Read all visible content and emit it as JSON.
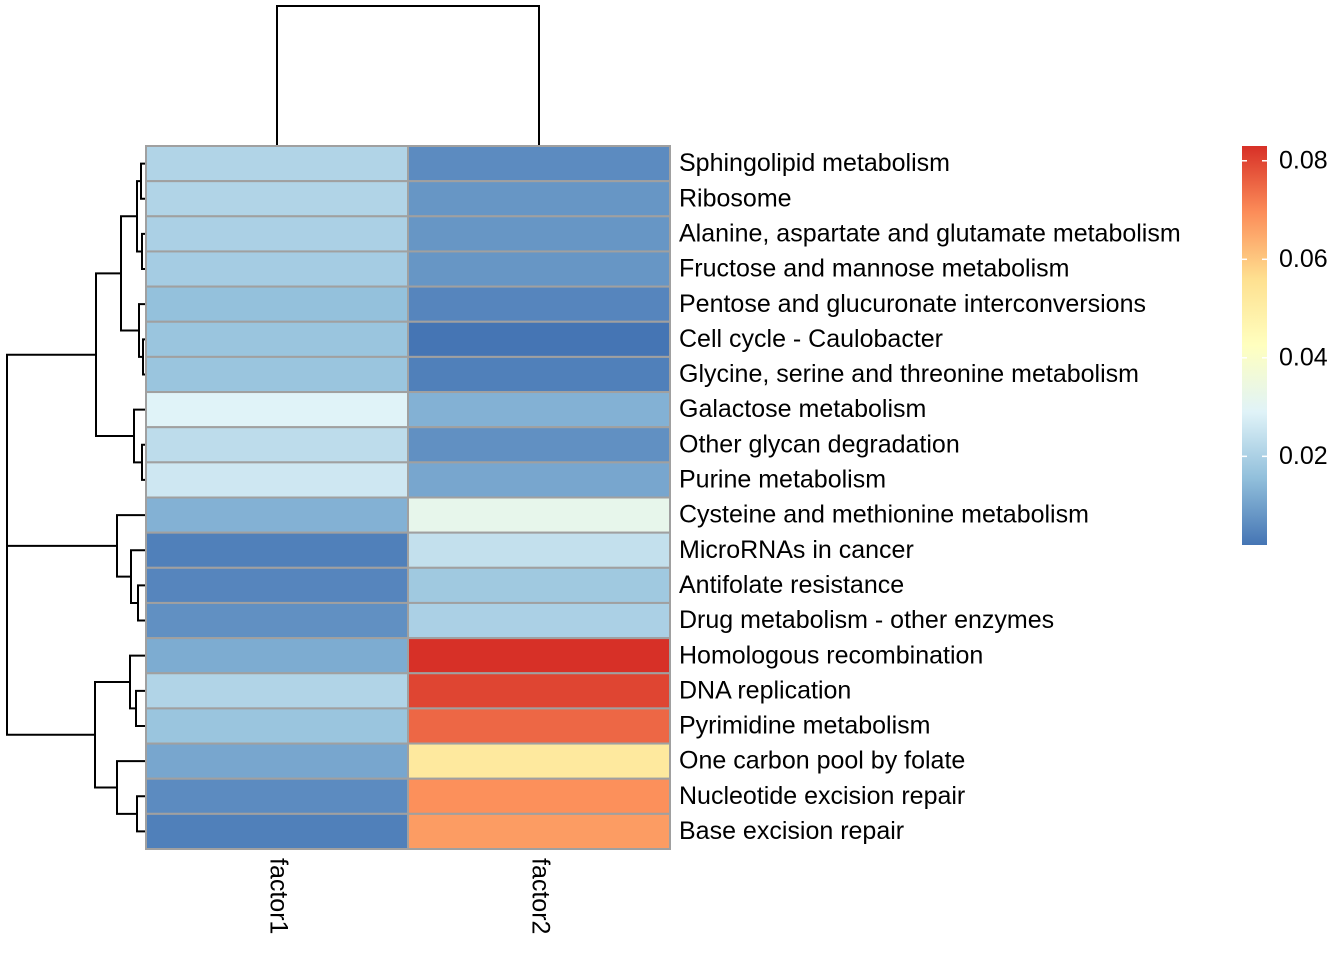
{
  "chart_data": {
    "type": "heatmap",
    "title": "",
    "xlabel": "",
    "ylabel": "",
    "columns": [
      "factor1",
      "factor2"
    ],
    "rows": [
      "Sphingolipid metabolism",
      "Ribosome",
      "Alanine, aspartate and glutamate metabolism",
      "Fructose and mannose metabolism",
      "Pentose and glucuronate interconversions",
      "Cell cycle - Caulobacter",
      "Glycine, serine and threonine metabolism",
      "Galactose metabolism",
      "Other glycan degradation",
      "Purine metabolism",
      "Cysteine and methionine metabolism",
      "MicroRNAs in cancer",
      "Antifolate resistance",
      "Drug metabolism - other enzymes",
      "Homologous recombination",
      "DNA replication",
      "Pyrimidine metabolism",
      "One carbon pool by folate",
      "Nucleotide excision repair",
      "Base excision repair"
    ],
    "values": [
      [
        0.021,
        0.006
      ],
      [
        0.021,
        0.008
      ],
      [
        0.02,
        0.008
      ],
      [
        0.019,
        0.008
      ],
      [
        0.016,
        0.005
      ],
      [
        0.017,
        0.002
      ],
      [
        0.017,
        0.004
      ],
      [
        0.029,
        0.013
      ],
      [
        0.023,
        0.007
      ],
      [
        0.026,
        0.011
      ],
      [
        0.013,
        0.032
      ],
      [
        0.004,
        0.024
      ],
      [
        0.005,
        0.018
      ],
      [
        0.007,
        0.02
      ],
      [
        0.012,
        0.083
      ],
      [
        0.021,
        0.08
      ],
      [
        0.017,
        0.075
      ],
      [
        0.011,
        0.052
      ],
      [
        0.006,
        0.069
      ],
      [
        0.004,
        0.067
      ]
    ],
    "color_scale": {
      "min": 0.002,
      "max": 0.083,
      "stops": [
        "#4575B4",
        "#91BFDB",
        "#E0F3F8",
        "#FFFFBF",
        "#FEE090",
        "#FC8D59",
        "#D73027"
      ],
      "ticks": [
        0.02,
        0.04,
        0.06,
        0.08
      ],
      "tick_labels": [
        "0.02",
        "0.04",
        "0.06",
        "0.08"
      ]
    },
    "column_dendrogram": true,
    "row_dendrogram": true,
    "cell_border_color": "#A0A0A0"
  }
}
